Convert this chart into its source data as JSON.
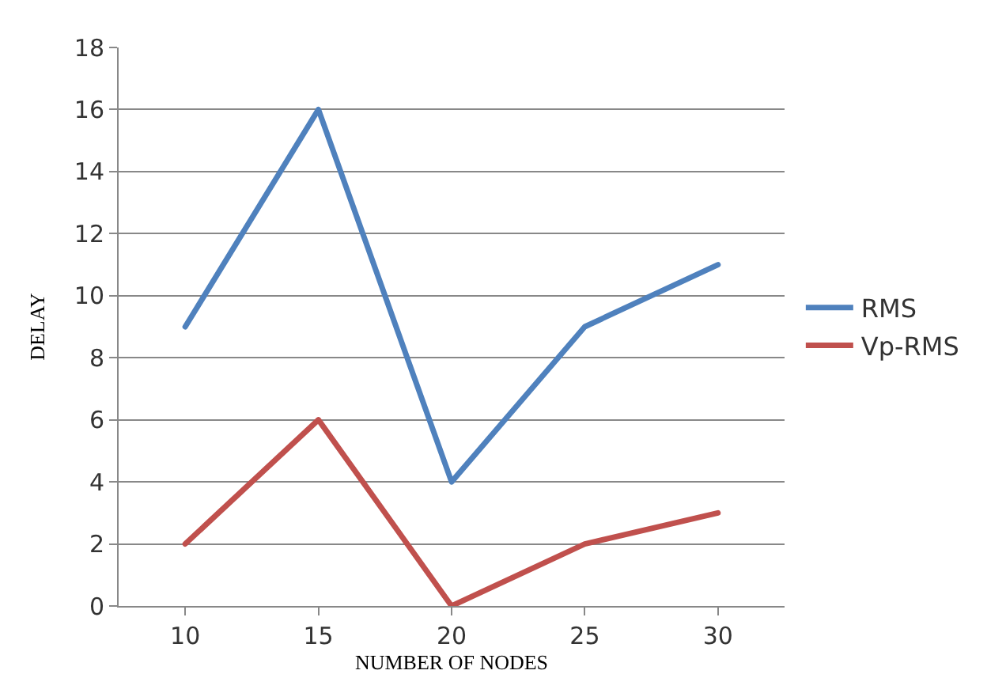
{
  "chart_data": {
    "type": "line",
    "xlabel": "NUMBER OF NODES",
    "ylabel": "DELAY",
    "categories": [
      "10",
      "15",
      "20",
      "25",
      "30"
    ],
    "series": [
      {
        "name": "RMS",
        "color": "#4f81bd",
        "values": [
          9,
          16,
          4,
          9,
          11
        ]
      },
      {
        "name": "Vp-RMS",
        "color": "#c0504d",
        "values": [
          2,
          6,
          0,
          2,
          3
        ]
      }
    ],
    "ylim": [
      0,
      18
    ],
    "yticks": [
      0,
      2,
      4,
      6,
      8,
      10,
      12,
      14,
      16,
      18
    ],
    "grid": "y",
    "legend": "right",
    "marker": "none",
    "line_style": "solid"
  }
}
